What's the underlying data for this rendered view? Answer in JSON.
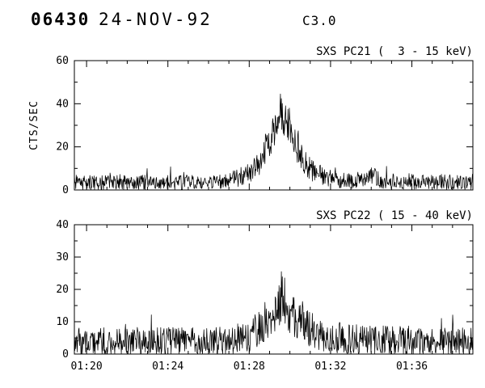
{
  "colors": {
    "ink": "#000000",
    "background": "#ffffff"
  },
  "header": {
    "event_id": "06430",
    "date": "24-NOV-92",
    "goes_class": "C3.0"
  },
  "chart_data": [
    {
      "type": "line",
      "title": "SXS PC21 (  3 - 15 keV)",
      "ylabel": "CTS/SEC",
      "ylim": [
        0,
        60
      ],
      "yticks": [
        0,
        20,
        40,
        60
      ],
      "y_minor_step": 10,
      "x_start": 79.4,
      "x_end": 99.0,
      "x_minor_step": 1,
      "xticks": [
        {
          "value": 80,
          "label": "01:20"
        },
        {
          "value": 84,
          "label": "01:24"
        },
        {
          "value": 88,
          "label": "01:28"
        },
        {
          "value": 92,
          "label": "01:32"
        },
        {
          "value": 96,
          "label": "01:36"
        }
      ],
      "baseline_cts": 4,
      "peak_cts": 50,
      "peak_time": "01:29.5",
      "series": {
        "name": "SXS PC21 3-15 keV lightcurve",
        "points_n": 850,
        "seed": 12345,
        "noise_k": 1.6,
        "spike_prob": 0.02,
        "envelope": [
          [
            79.4,
            3.5
          ],
          [
            86.5,
            3.5
          ],
          [
            87.3,
            5
          ],
          [
            88.0,
            8
          ],
          [
            88.6,
            14
          ],
          [
            89.0,
            22
          ],
          [
            89.3,
            30
          ],
          [
            89.55,
            38
          ],
          [
            89.75,
            33
          ],
          [
            90.0,
            29
          ],
          [
            90.3,
            21
          ],
          [
            90.7,
            13
          ],
          [
            91.2,
            8
          ],
          [
            92.0,
            5.5
          ],
          [
            93.0,
            4
          ],
          [
            94.1,
            6.5
          ],
          [
            94.5,
            4
          ],
          [
            99.0,
            3.5
          ]
        ]
      }
    },
    {
      "type": "line",
      "title": "SXS PC22 ( 15 - 40 keV)",
      "ylabel": "",
      "ylim": [
        0,
        40
      ],
      "yticks": [
        0,
        10,
        20,
        30,
        40
      ],
      "y_minor_step": 5,
      "x_start": 79.4,
      "x_end": 99.0,
      "x_minor_step": 1,
      "xticks": [
        {
          "value": 80,
          "label": "01:20"
        },
        {
          "value": 84,
          "label": "01:24"
        },
        {
          "value": 88,
          "label": "01:28"
        },
        {
          "value": 92,
          "label": "01:32"
        },
        {
          "value": 96,
          "label": "01:36"
        }
      ],
      "baseline_cts": 4,
      "peak_cts": 27,
      "peak_time": "01:29.5",
      "series": {
        "name": "SXS PC22 15-40 keV lightcurve",
        "points_n": 850,
        "seed": 777,
        "noise_k": 2.0,
        "spike_prob": 0.02,
        "envelope": [
          [
            79.4,
            3.8
          ],
          [
            87.0,
            4
          ],
          [
            88.0,
            5.5
          ],
          [
            88.7,
            9
          ],
          [
            89.2,
            13
          ],
          [
            89.55,
            18
          ],
          [
            89.9,
            14
          ],
          [
            90.4,
            11
          ],
          [
            91.0,
            7.5
          ],
          [
            91.8,
            5.5
          ],
          [
            93.0,
            4.5
          ],
          [
            99.0,
            4
          ]
        ]
      }
    }
  ]
}
